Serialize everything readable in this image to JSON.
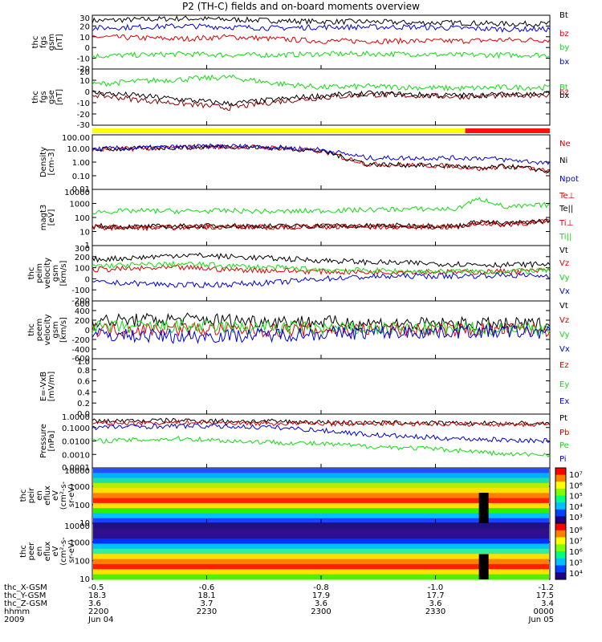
{
  "title": "P2 (TH-C) fields and on-board moments overview",
  "colors": {
    "black": "#000000",
    "red": "#e00000",
    "green": "#11dd11",
    "blue": "#0000e0",
    "darkred": "#8b0000",
    "yellow": "#ffff00"
  },
  "chart_data": [
    {
      "type": "line",
      "id": "fgs_gsm",
      "ylabel": [
        "thc",
        "fgs",
        "gsm",
        "[nT]"
      ],
      "ylim": [
        -20,
        30
      ],
      "yticks": [
        "30",
        "20",
        "10",
        "0",
        "-10",
        "-20"
      ],
      "series": [
        {
          "name": "Bt",
          "color": "black",
          "x": [
            0,
            0.1,
            0.2,
            0.3,
            0.4,
            0.5,
            0.6,
            0.7,
            0.8,
            0.9,
            1.0
          ],
          "values": [
            25,
            26,
            27,
            26,
            25,
            24,
            24,
            23,
            23,
            22,
            22
          ]
        },
        {
          "name": "bz",
          "color": "red",
          "x": [
            0,
            0.1,
            0.2,
            0.3,
            0.4,
            0.5,
            0.6,
            0.7,
            0.8,
            0.9,
            1.0
          ],
          "values": [
            10,
            9,
            8,
            10,
            8,
            6,
            6,
            6,
            6,
            7,
            7
          ]
        },
        {
          "name": "by",
          "color": "green",
          "x": [
            0,
            0.1,
            0.2,
            0.3,
            0.4,
            0.5,
            0.6,
            0.7,
            0.8,
            0.9,
            1.0
          ],
          "values": [
            -8,
            -7,
            -6,
            -7,
            -7,
            -6,
            -6,
            -6,
            -7,
            -7,
            -7
          ]
        },
        {
          "name": "bx",
          "color": "blue",
          "x": [
            0,
            0.1,
            0.2,
            0.3,
            0.4,
            0.5,
            0.6,
            0.7,
            0.8,
            0.9,
            1.0
          ],
          "values": [
            18,
            19,
            20,
            19,
            18,
            19,
            19,
            19,
            18,
            17,
            17
          ]
        }
      ]
    },
    {
      "type": "line",
      "id": "fgs_gse",
      "ylabel": [
        "thc",
        "fgs",
        "gse",
        "[nT]"
      ],
      "ylim": [
        -35,
        20
      ],
      "yticks": [
        "20",
        "10",
        "0",
        "-10",
        "-20",
        "-30"
      ],
      "series": [
        {
          "name": "Bt",
          "color": "green",
          "x": [
            0,
            0.1,
            0.2,
            0.3,
            0.4,
            0.5,
            0.6,
            0.7,
            0.8,
            0.9,
            1.0
          ],
          "values": [
            5,
            8,
            10,
            12,
            6,
            2,
            3,
            2,
            1,
            2,
            2
          ]
        },
        {
          "name": "bz",
          "color": "darkred",
          "x": [
            0,
            0.1,
            0.2,
            0.3,
            0.4,
            0.5,
            0.6,
            0.7,
            0.8,
            0.9,
            1.0
          ],
          "values": [
            -5,
            -10,
            -14,
            -18,
            -12,
            -8,
            -5,
            -6,
            -7,
            -6,
            -5
          ]
        },
        {
          "name": "bx",
          "color": "black",
          "x": [
            0,
            0.1,
            0.2,
            0.3,
            0.4,
            0.5,
            0.6,
            0.7,
            0.8,
            0.9,
            1.0
          ],
          "values": [
            -3,
            -6,
            -10,
            -14,
            -10,
            -6,
            -4,
            -5,
            -6,
            -5,
            -4
          ]
        }
      ]
    },
    {
      "type": "line",
      "id": "density",
      "log": true,
      "ylabel": [
        "Density",
        "[cm-3]"
      ],
      "ylim": [
        0.01,
        100
      ],
      "yticks": [
        "100.00",
        "10.00",
        "1.00",
        "0.10",
        "0.01"
      ],
      "series": [
        {
          "name": "Ne",
          "color": "red",
          "x": [
            0,
            0.1,
            0.2,
            0.3,
            0.4,
            0.5,
            0.55,
            0.6,
            0.7,
            0.8,
            0.85,
            0.9,
            1.0
          ],
          "values": [
            8,
            10,
            12,
            14,
            11,
            6,
            2,
            0.7,
            0.6,
            0.5,
            0.3,
            0.5,
            0.2
          ]
        },
        {
          "name": "Ni",
          "color": "black",
          "x": [
            0,
            0.1,
            0.2,
            0.3,
            0.4,
            0.5,
            0.55,
            0.6,
            0.7,
            0.8,
            0.85,
            0.9,
            1.0
          ],
          "values": [
            8,
            10,
            12,
            14,
            11,
            6,
            2,
            0.7,
            0.6,
            0.5,
            0.3,
            0.5,
            0.2
          ]
        },
        {
          "name": "Npot",
          "color": "blue",
          "x": [
            0,
            0.1,
            0.2,
            0.3,
            0.4,
            0.5,
            0.55,
            0.6,
            0.7,
            0.8,
            0.85,
            0.9,
            1.0
          ],
          "values": [
            9,
            11,
            13,
            15,
            12,
            8,
            4,
            2,
            2,
            2,
            2,
            1.5,
            0.8
          ]
        }
      ]
    },
    {
      "type": "line",
      "id": "temperature",
      "log": true,
      "ylabel": [
        "magt3",
        "[eV]"
      ],
      "ylim": [
        1,
        10000
      ],
      "yticks": [
        "10000",
        "1000",
        "100",
        "10",
        "1"
      ],
      "series": [
        {
          "name": "Te⊥",
          "color": "red",
          "x": [
            0,
            0.1,
            0.2,
            0.3,
            0.4,
            0.5,
            0.6,
            0.7,
            0.8,
            0.85,
            0.9,
            1.0
          ],
          "values": [
            20,
            18,
            20,
            22,
            20,
            22,
            20,
            22,
            20,
            40,
            30,
            50
          ]
        },
        {
          "name": "Te||",
          "color": "black",
          "x": [
            0,
            0.1,
            0.2,
            0.3,
            0.4,
            0.5,
            0.6,
            0.7,
            0.8,
            0.85,
            0.9,
            1.0
          ],
          "values": [
            25,
            22,
            24,
            26,
            24,
            26,
            25,
            27,
            25,
            50,
            35,
            60
          ]
        },
        {
          "name": "Ti⊥",
          "color": "darkred",
          "x": [
            0,
            0.1,
            0.2,
            0.3,
            0.4,
            0.5,
            0.6,
            0.7,
            0.8,
            0.85,
            0.9,
            1.0
          ],
          "values": [
            22,
            20,
            22,
            24,
            22,
            24,
            22,
            24,
            22,
            45,
            32,
            55
          ]
        },
        {
          "name": "Ti||",
          "color": "green",
          "x": [
            0,
            0.1,
            0.2,
            0.3,
            0.4,
            0.5,
            0.6,
            0.7,
            0.8,
            0.85,
            0.9,
            1.0
          ],
          "values": [
            250,
            300,
            280,
            300,
            260,
            300,
            350,
            400,
            400,
            2000,
            500,
            800
          ]
        }
      ]
    },
    {
      "type": "line",
      "id": "peim_velocity",
      "ylabel": [
        "thc",
        "peim",
        "velocity",
        "gsm",
        "[km/s]"
      ],
      "ylim": [
        -300,
        300
      ],
      "yticks": [
        "300",
        "200",
        "100",
        "0",
        "-100",
        "-200"
      ],
      "series": [
        {
          "name": "Vt",
          "color": "black",
          "x": [
            0,
            0.1,
            0.2,
            0.3,
            0.4,
            0.5,
            0.6,
            0.7,
            0.8,
            0.9,
            1.0
          ],
          "values": [
            150,
            170,
            200,
            180,
            160,
            140,
            120,
            110,
            100,
            90,
            100
          ]
        },
        {
          "name": "Vz",
          "color": "red",
          "x": [
            0,
            0.1,
            0.2,
            0.3,
            0.4,
            0.5,
            0.6,
            0.7,
            0.8,
            0.9,
            1.0
          ],
          "values": [
            40,
            50,
            60,
            40,
            30,
            20,
            10,
            20,
            10,
            20,
            30
          ]
        },
        {
          "name": "Vy",
          "color": "green",
          "x": [
            0,
            0.1,
            0.2,
            0.3,
            0.4,
            0.5,
            0.6,
            0.7,
            0.8,
            0.9,
            1.0
          ],
          "values": [
            80,
            90,
            100,
            80,
            60,
            40,
            30,
            20,
            20,
            20,
            30
          ]
        },
        {
          "name": "Vx",
          "color": "blue",
          "x": [
            0,
            0.1,
            0.2,
            0.3,
            0.4,
            0.5,
            0.6,
            0.7,
            0.8,
            0.9,
            1.0
          ],
          "values": [
            -100,
            -110,
            -130,
            -120,
            -100,
            -60,
            -40,
            -30,
            -30,
            -20,
            -30
          ]
        }
      ]
    },
    {
      "type": "line",
      "id": "peem_velocity",
      "ylabel": [
        "thc",
        "peem",
        "velocity",
        "gsm",
        "[km/s]"
      ],
      "ylim": [
        -600,
        600
      ],
      "yticks": [
        "600",
        "400",
        "200",
        "0",
        "-200",
        "-400",
        "-600"
      ],
      "series": [
        {
          "name": "Vt",
          "color": "black",
          "x": [
            0,
            0.1,
            0.2,
            0.3,
            0.4,
            0.5,
            0.6,
            0.7,
            0.8,
            0.9,
            1.0
          ],
          "values": [
            180,
            200,
            220,
            200,
            180,
            160,
            140,
            120,
            120,
            110,
            120
          ]
        },
        {
          "name": "Vz",
          "color": "red",
          "x": [
            0,
            0.1,
            0.2,
            0.3,
            0.4,
            0.5,
            0.6,
            0.7,
            0.8,
            0.9,
            1.0
          ],
          "values": [
            0,
            10,
            20,
            0,
            -10,
            0,
            10,
            0,
            0,
            10,
            0
          ]
        },
        {
          "name": "Vy",
          "color": "green",
          "x": [
            0,
            0.1,
            0.2,
            0.3,
            0.4,
            0.5,
            0.6,
            0.7,
            0.8,
            0.9,
            1.0
          ],
          "values": [
            50,
            60,
            70,
            50,
            40,
            30,
            20,
            20,
            20,
            30,
            30
          ]
        },
        {
          "name": "Vx",
          "color": "blue",
          "x": [
            0,
            0.1,
            0.2,
            0.3,
            0.4,
            0.5,
            0.6,
            0.7,
            0.8,
            0.9,
            1.0
          ],
          "values": [
            -100,
            -120,
            -140,
            -120,
            -100,
            -80,
            -60,
            -50,
            -40,
            -40,
            -50
          ]
        }
      ]
    },
    {
      "type": "line",
      "id": "efield",
      "ylabel": [
        "E=-VxB",
        "[mV/m]"
      ],
      "ylim": [
        0,
        1
      ],
      "yticks": [
        "1.0",
        "0.8",
        "0.6",
        "0.4",
        "0.2",
        "0.0"
      ],
      "series": [
        {
          "name": "Ez",
          "color": "red",
          "x": [],
          "values": []
        },
        {
          "name": "Ey",
          "color": "green",
          "x": [],
          "values": []
        },
        {
          "name": "Ex",
          "color": "blue",
          "x": [],
          "values": []
        }
      ]
    },
    {
      "type": "line",
      "id": "pressure",
      "log": true,
      "ylabel": [
        "Pressure",
        "[nPa]"
      ],
      "ylim": [
        0.0001,
        1
      ],
      "yticks": [
        "1.0000",
        "0.1000",
        "0.0100",
        "0.0010",
        "0.0001"
      ],
      "series": [
        {
          "name": "Pt",
          "color": "black",
          "x": [
            0,
            0.1,
            0.2,
            0.3,
            0.4,
            0.5,
            0.6,
            0.7,
            0.8,
            0.9,
            1.0
          ],
          "values": [
            0.3,
            0.32,
            0.34,
            0.3,
            0.28,
            0.25,
            0.22,
            0.22,
            0.2,
            0.2,
            0.2
          ]
        },
        {
          "name": "Pb",
          "color": "red",
          "x": [
            0,
            0.1,
            0.2,
            0.3,
            0.4,
            0.5,
            0.6,
            0.7,
            0.8,
            0.9,
            1.0
          ],
          "values": [
            0.2,
            0.22,
            0.24,
            0.22,
            0.2,
            0.2,
            0.2,
            0.2,
            0.18,
            0.18,
            0.18
          ]
        },
        {
          "name": "Pe",
          "color": "green",
          "x": [
            0,
            0.1,
            0.2,
            0.3,
            0.4,
            0.5,
            0.6,
            0.7,
            0.8,
            0.9,
            1.0
          ],
          "values": [
            0.01,
            0.012,
            0.015,
            0.01,
            0.008,
            0.006,
            0.004,
            0.003,
            0.002,
            0.001,
            0.001
          ]
        },
        {
          "name": "Pi",
          "color": "blue",
          "x": [
            0,
            0.1,
            0.2,
            0.3,
            0.4,
            0.5,
            0.6,
            0.7,
            0.8,
            0.9,
            1.0
          ],
          "values": [
            0.1,
            0.12,
            0.13,
            0.12,
            0.1,
            0.06,
            0.03,
            0.02,
            0.015,
            0.012,
            0.01
          ]
        }
      ]
    },
    {
      "type": "heatmap",
      "id": "peir_spec",
      "ylabel": [
        "thc",
        "peir",
        "en",
        "eflux",
        "eV",
        "(cm²-s-",
        "sr-eV)"
      ],
      "yticks": [
        "10000",
        "1000",
        "100",
        "10"
      ],
      "colorbar_ticks": [
        "10⁷",
        "10⁶",
        "10⁵",
        "10⁴",
        "10³"
      ]
    },
    {
      "type": "heatmap",
      "id": "peer_spec",
      "ylabel": [
        "thc",
        "peer",
        "en",
        "eflux",
        "eV",
        "(cm²-s-",
        "sr-eV)"
      ],
      "yticks": [
        "10000",
        "1000",
        "100",
        "10"
      ],
      "colorbar_ticks": [
        "10⁸",
        "10⁷",
        "10⁶",
        "10⁵",
        "10⁴"
      ]
    }
  ],
  "xaxis": {
    "row_labels": [
      "thc_X-GSM",
      "thc_Y-GSM",
      "thc_Z-GSM",
      "hhmm",
      "2009"
    ],
    "ticks": [
      {
        "values": [
          "-0.5",
          "18.3",
          "3.6",
          "2200",
          "Jun 04"
        ]
      },
      {
        "values": [
          "-0.6",
          "18.1",
          "3.7",
          "2230",
          ""
        ]
      },
      {
        "values": [
          "-0.8",
          "17.9",
          "3.6",
          "2300",
          ""
        ]
      },
      {
        "values": [
          "-1.0",
          "17.7",
          "3.6",
          "2330",
          ""
        ]
      },
      {
        "values": [
          "-1.2",
          "17.5",
          "3.4",
          "0000",
          "Jun 05"
        ]
      }
    ]
  },
  "mode_bar": {
    "yellow_to_red_fraction": 0.815
  }
}
